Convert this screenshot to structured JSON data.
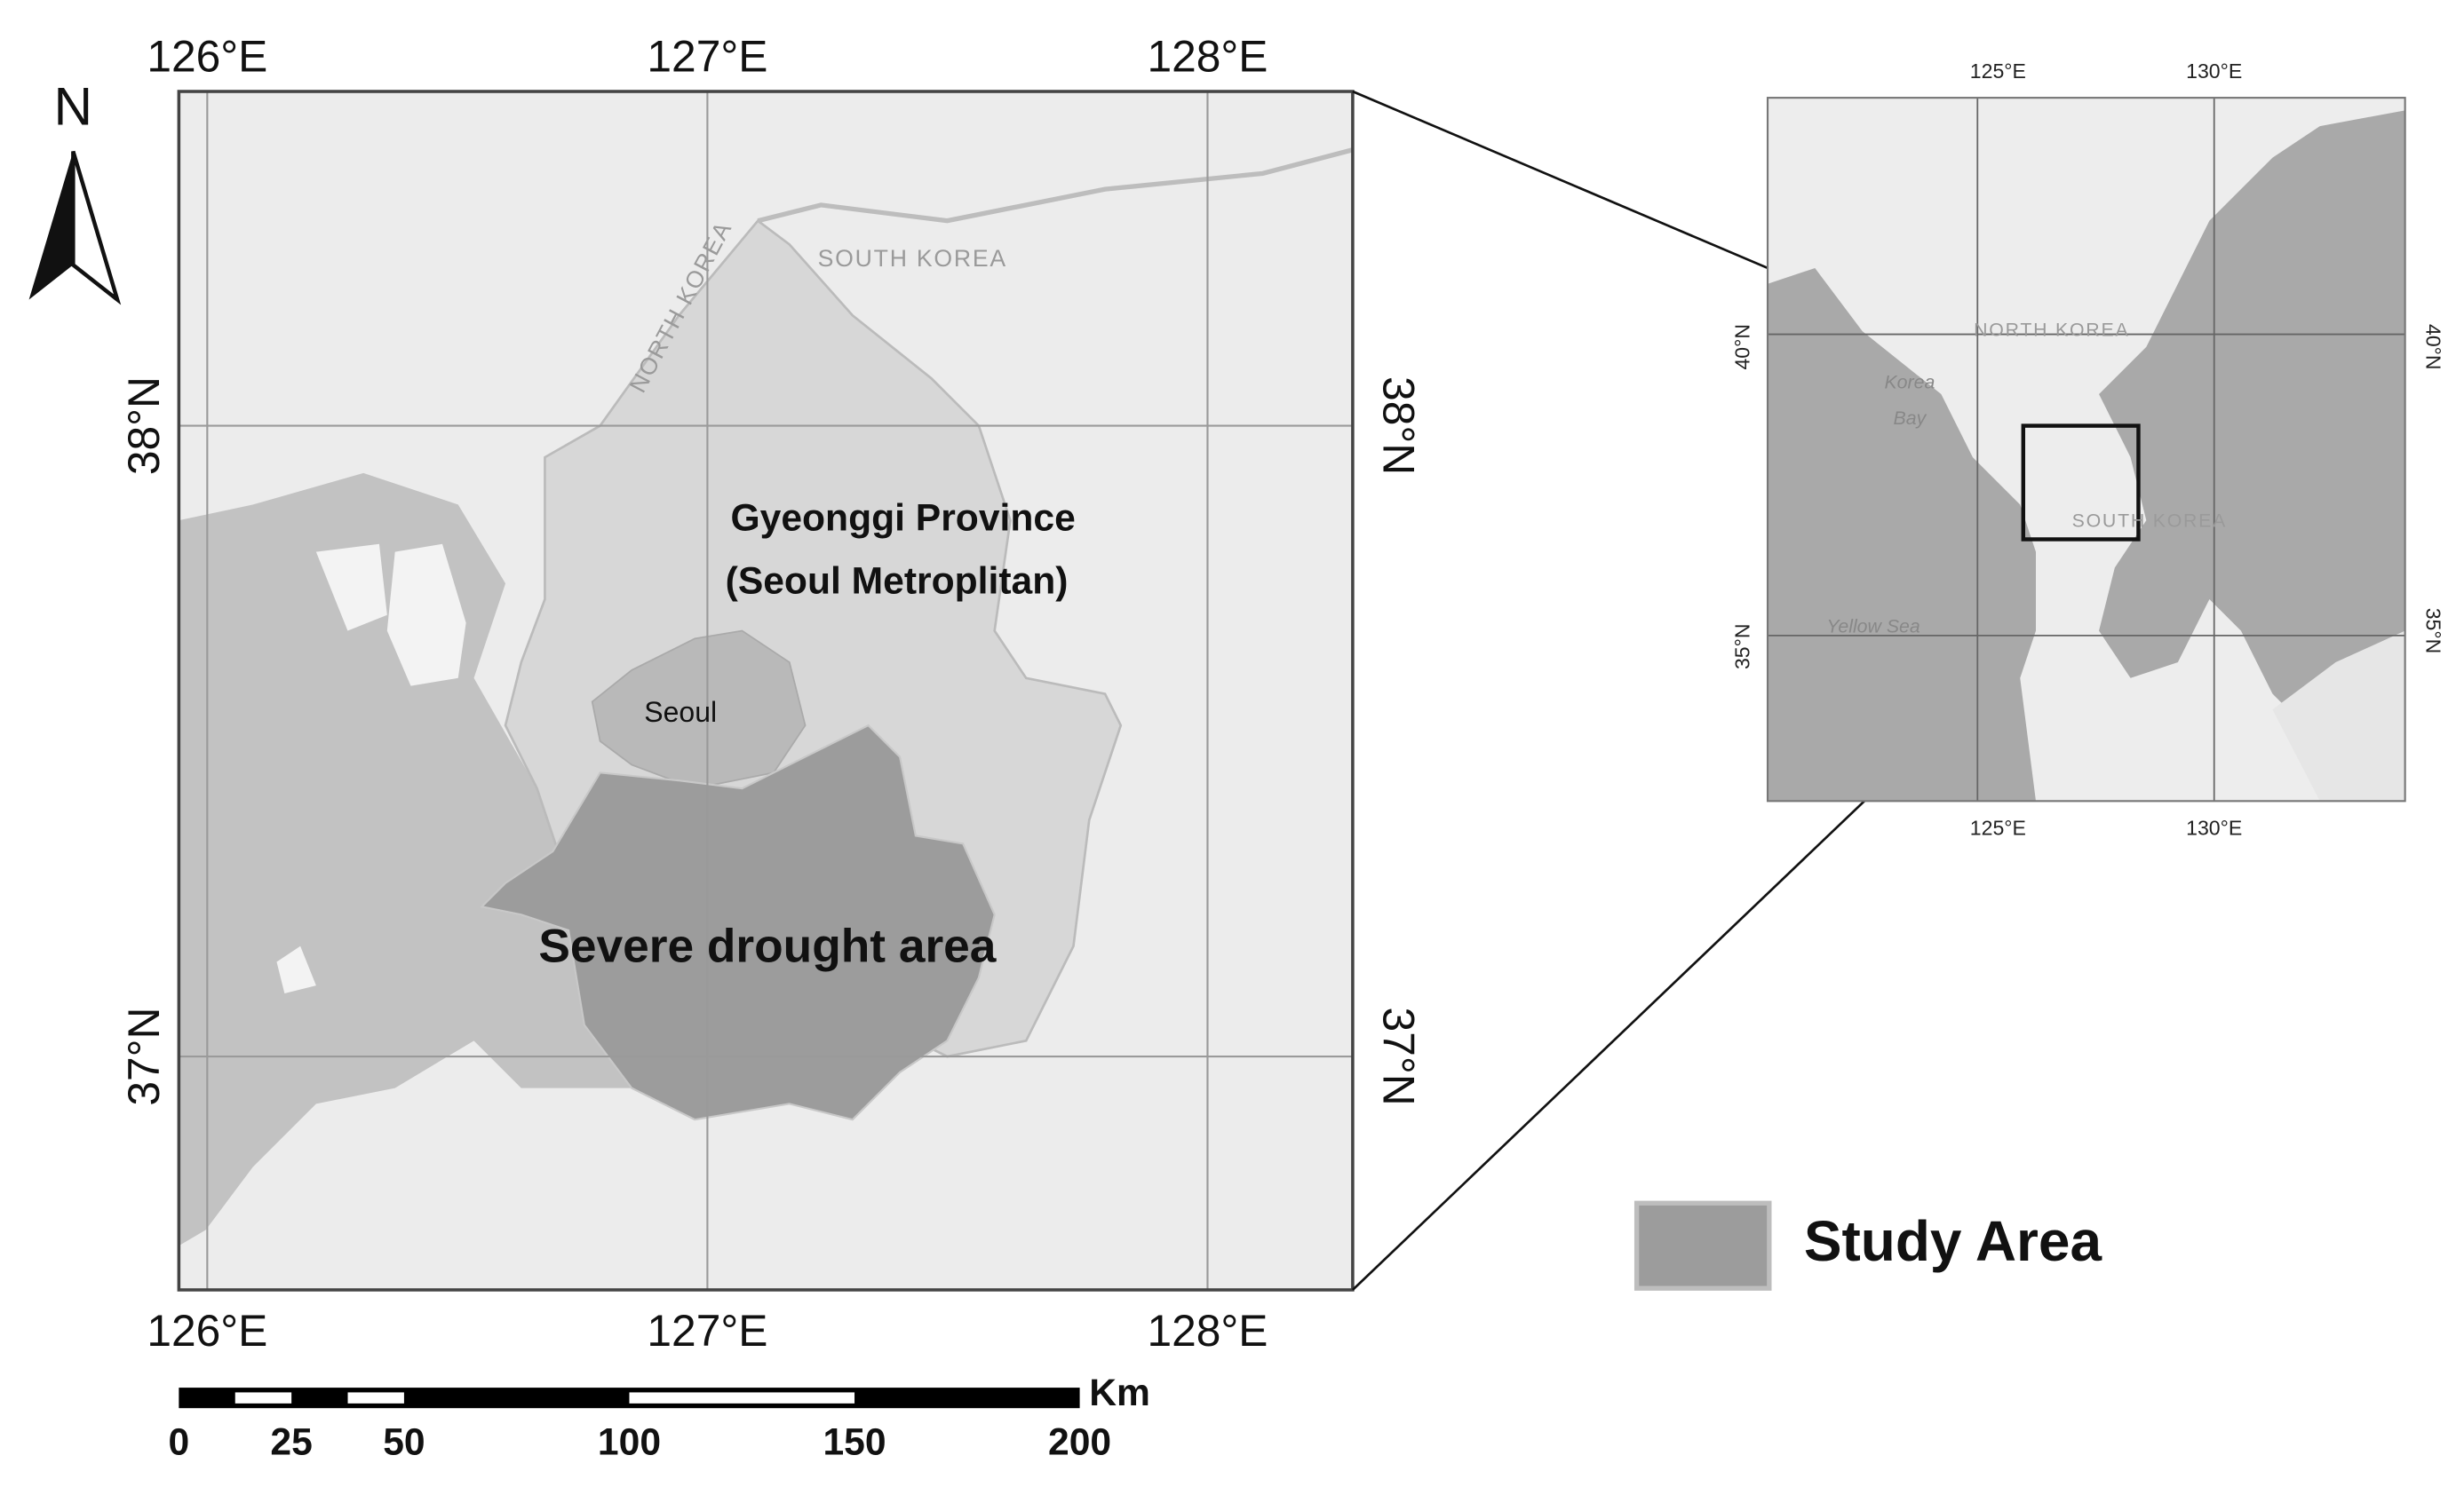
{
  "north_arrow": {
    "label": "N"
  },
  "main_map": {
    "top_labels": [
      "126°E",
      "127°E",
      "128°E"
    ],
    "bottom_labels": [
      "126°E",
      "127°E",
      "128°E"
    ],
    "left_labels": [
      "38°N",
      "37°N"
    ],
    "right_labels": [
      "38°N",
      "37°N"
    ],
    "place_labels": {
      "north_korea": "NORTH KOREA",
      "south_korea": "SOUTH KOREA",
      "province_line1": "Gyeonggi Province",
      "province_line2": "(Seoul Metroplitan)",
      "seoul": "Seoul",
      "drought": "Severe drought area"
    }
  },
  "inset_map": {
    "top_labels": [
      "125°E",
      "130°E"
    ],
    "bottom_labels": [
      "125°E",
      "130°E"
    ],
    "left_labels": [
      "40°N",
      "35°N"
    ],
    "right_labels": [
      "40°N",
      "35°N"
    ],
    "place_labels": {
      "north_korea": "NORTH KOREA",
      "korea_bay_line1": "Korea",
      "korea_bay_line2": "Bay",
      "south_korea": "SOUTH KOREA",
      "yellow_sea": "Yellow Sea"
    }
  },
  "scale_bar": {
    "unit": "Km",
    "ticks": [
      0,
      25,
      50,
      100,
      150,
      200
    ]
  },
  "legend": {
    "label": "Study Area"
  }
}
